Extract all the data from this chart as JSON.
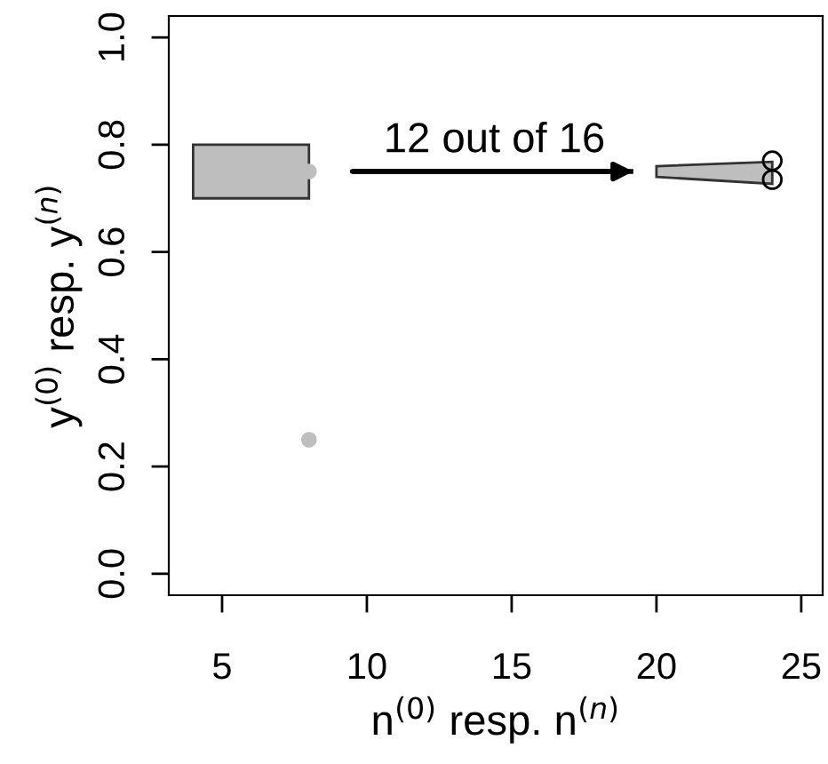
{
  "chart_data": {
    "type": "scatter",
    "xlabel": "n$^{(0)}$ resp. n$^{(n)}$",
    "ylabel": "y$^{(0)}$ resp. y$^{(n)}$",
    "xlim": [
      3.16,
      25.74
    ],
    "ylim": [
      -0.04,
      1.04
    ],
    "xticks": [
      5,
      10,
      15,
      20,
      25
    ],
    "yticks": [
      {
        "value": 0,
        "label": "0.0"
      },
      0.2,
      0.4,
      0.6,
      0.8,
      {
        "value": 1,
        "label": "1.0"
      }
    ],
    "grid": false,
    "legend": false,
    "series": [
      {
        "type": "area",
        "color": "#bebebe",
        "x": [
          4,
          8,
          8,
          4
        ],
        "values": [
          0.7,
          0.7,
          0.8,
          0.8
        ]
      },
      {
        "type": "area",
        "color": "#bebebe",
        "x": [
          20,
          24,
          24,
          20
        ],
        "values": [
          0.74,
          0.727,
          0.768,
          0.76
        ]
      },
      {
        "color": "#bebebe",
        "marker": "circle",
        "x": [
          8,
          8
        ],
        "values": [
          0.75,
          0.25
        ]
      },
      {
        "color": "#000000",
        "marker": "circle",
        "x": [
          24,
          24
        ],
        "values": [
          0.77,
          0.735
        ]
      },
      {
        "type": "line",
        "color": "#000000",
        "x": [
          9.5,
          19.2
        ],
        "values": [
          0.75,
          0.75
        ]
      }
    ],
    "annotations": [
      "12 out of 16"
    ]
  }
}
